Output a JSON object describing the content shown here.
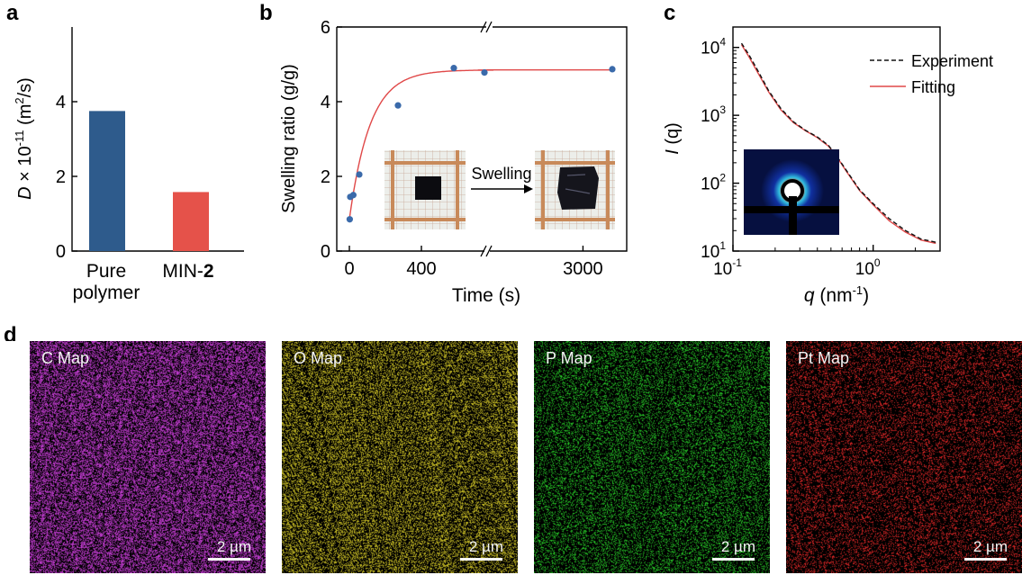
{
  "panel_letters": {
    "a": "a",
    "b": "b",
    "c": "c",
    "d": "d"
  },
  "chart_data": [
    {
      "panel": "a",
      "type": "bar",
      "categories": [
        [
          "Pure",
          "polymer"
        ],
        [
          "MIN-",
          "2"
        ]
      ],
      "values": [
        3.75,
        1.58
      ],
      "colors": [
        "#2e5b8c",
        "#e5524a"
      ],
      "ylabel": {
        "var": "D",
        "mid": " × 10",
        "exp1": "-11",
        "unit": " (m",
        "exp2": "2",
        "tail": "/s)"
      },
      "ylim": [
        0,
        6
      ],
      "yticks": [
        "0",
        "2",
        "4"
      ]
    },
    {
      "panel": "b",
      "type": "scatter",
      "xlabel": "Time (s)",
      "ylabel": "Swelling ratio (g/g)",
      "ylim": [
        0,
        6
      ],
      "yticks": [
        "0",
        "2",
        "4",
        "6"
      ],
      "xticks": [
        "0",
        "400",
        "3000"
      ],
      "x_axis_break": true,
      "points": [
        [
          2,
          0.85
        ],
        [
          5,
          1.45
        ],
        [
          22,
          1.5
        ],
        [
          55,
          2.05
        ],
        [
          270,
          3.9
        ],
        [
          580,
          4.9
        ],
        [
          750,
          4.78
        ],
        [
          3600,
          4.87
        ]
      ],
      "fit": {
        "type": "exponential",
        "plateau": 4.85,
        "y0": 0.85,
        "tau_s": 115,
        "color": "#e04848"
      },
      "inset": {
        "arrow_label": "Swelling"
      }
    },
    {
      "panel": "c",
      "type": "line",
      "xscale": "log",
      "yscale": "log",
      "xlabel": {
        "var": "q",
        "unit": " (nm",
        "exp": "-1",
        "tail": ")"
      },
      "ylabel": {
        "var": "I",
        "tail": " (q)"
      },
      "xlim": [
        0.1,
        3
      ],
      "ylim": [
        10,
        20000
      ],
      "xticks": [
        {
          "base": "10",
          "exp": "-1"
        },
        {
          "base": "10",
          "exp": "0"
        }
      ],
      "yticks": [
        {
          "base": "10",
          "exp": "1"
        },
        {
          "base": "10",
          "exp": "2"
        },
        {
          "base": "10",
          "exp": "3"
        },
        {
          "base": "10",
          "exp": "4"
        }
      ],
      "series": [
        {
          "name": "Experiment",
          "style": "dashed",
          "color": "#111111",
          "points": [
            [
              0.115,
              11500
            ],
            [
              0.13,
              7800
            ],
            [
              0.15,
              4600
            ],
            [
              0.18,
              2300
            ],
            [
              0.22,
              1250
            ],
            [
              0.27,
              800
            ],
            [
              0.33,
              600
            ],
            [
              0.4,
              480
            ],
            [
              0.48,
              360
            ],
            [
              0.55,
              250
            ],
            [
              0.65,
              150
            ],
            [
              0.8,
              80
            ],
            [
              1.0,
              50
            ],
            [
              1.3,
              30
            ],
            [
              1.7,
              20
            ],
            [
              2.2,
              15
            ],
            [
              2.8,
              13.5
            ]
          ]
        },
        {
          "name": "Fitting",
          "style": "solid",
          "color": "#e04848",
          "points": [
            [
              0.115,
              11000
            ],
            [
              0.13,
              7300
            ],
            [
              0.15,
              4300
            ],
            [
              0.18,
              2200
            ],
            [
              0.22,
              1200
            ],
            [
              0.27,
              780
            ],
            [
              0.33,
              590
            ],
            [
              0.4,
              470
            ],
            [
              0.48,
              350
            ],
            [
              0.55,
              245
            ],
            [
              0.65,
              145
            ],
            [
              0.8,
              78
            ],
            [
              1.0,
              48
            ],
            [
              1.3,
              28
            ],
            [
              1.7,
              19
            ],
            [
              2.2,
              14.5
            ],
            [
              2.8,
              13
            ]
          ]
        }
      ],
      "legend_position": "top-right"
    }
  ],
  "maps": [
    {
      "label": "C Map",
      "color": "#d040e0",
      "scale": "2 µm"
    },
    {
      "label": "O Map",
      "color": "#d8cc28",
      "scale": "2 µm"
    },
    {
      "label": "P Map",
      "color": "#28d028",
      "scale": "2 µm"
    },
    {
      "label": "Pt Map",
      "color": "#e82828",
      "scale": "2 µm"
    }
  ]
}
